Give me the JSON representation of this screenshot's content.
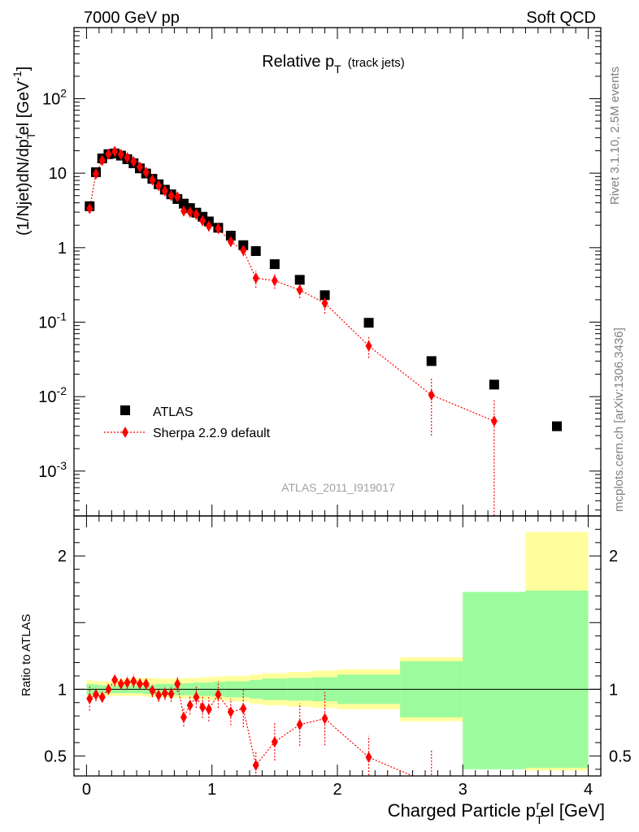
{
  "header": {
    "left": "7000 GeV pp",
    "right": "Soft QCD",
    "side_top": "Rivet 3.1.10,  2.5M events",
    "side_bottom": "mcplots.cern.ch [arXiv:1306.3436]"
  },
  "chart_data": [
    {
      "type": "scatter",
      "panel": "main",
      "title": "Relative p",
      "title_sub": "T",
      "title_note": "(track jets)",
      "ylabel": "(1/Njet)dN/dp",
      "ylabel_sub": "T",
      "ylabel_sup": "r",
      "ylabel_tail": "el [GeV",
      "ylabel_sup2": "-1",
      "ylabel_end": "]",
      "yscale": "log",
      "xlim": [
        -0.1,
        4.1
      ],
      "ylim": [
        0.00025,
        900
      ],
      "y_ticks": [
        {
          "value": 0.001,
          "base": "10",
          "exp": "-3"
        },
        {
          "value": 0.01,
          "base": "10",
          "exp": "-2"
        },
        {
          "value": 0.1,
          "base": "10",
          "exp": "-1"
        },
        {
          "value": 1,
          "base": "1",
          "exp": ""
        },
        {
          "value": 10,
          "base": "10",
          "exp": ""
        },
        {
          "value": 100,
          "base": "10",
          "exp": "2"
        }
      ],
      "watermark": "ATLAS_2011_I919017",
      "legend": {
        "position": "bottom-left",
        "entries": [
          "ATLAS",
          "Sherpa 2.2.9 default"
        ]
      },
      "series": [
        {
          "name": "ATLAS",
          "marker": "square",
          "color": "#000000",
          "x": [
            0.025,
            0.075,
            0.125,
            0.175,
            0.225,
            0.275,
            0.325,
            0.375,
            0.425,
            0.475,
            0.525,
            0.575,
            0.625,
            0.675,
            0.725,
            0.775,
            0.825,
            0.875,
            0.925,
            0.975,
            1.05,
            1.15,
            1.25,
            1.35,
            1.5,
            1.7,
            1.9,
            2.25,
            2.75,
            3.25,
            3.75
          ],
          "y": [
            3.6,
            10.3,
            15.8,
            18.0,
            18.4,
            17.2,
            15.4,
            13.6,
            11.6,
            9.9,
            8.4,
            7.1,
            6.0,
            5.2,
            4.5,
            3.9,
            3.4,
            2.95,
            2.6,
            2.25,
            1.85,
            1.45,
            1.08,
            0.9,
            0.6,
            0.37,
            0.23,
            0.098,
            0.03,
            0.0145,
            0.004
          ]
        },
        {
          "name": "Sherpa 2.2.9 default",
          "marker": "diamond",
          "line": "dotted",
          "color": "#ff0000",
          "x": [
            0.025,
            0.075,
            0.125,
            0.175,
            0.225,
            0.275,
            0.325,
            0.375,
            0.425,
            0.475,
            0.525,
            0.575,
            0.625,
            0.675,
            0.725,
            0.775,
            0.825,
            0.875,
            0.925,
            0.975,
            1.05,
            1.15,
            1.25,
            1.35,
            1.5,
            1.7,
            1.9,
            2.25,
            2.75,
            3.25
          ],
          "y": [
            3.35,
            9.8,
            14.8,
            18.0,
            19.6,
            17.9,
            16.1,
            14.3,
            12.1,
            10.3,
            8.1,
            6.8,
            5.8,
            5.0,
            4.8,
            3.1,
            3.0,
            2.8,
            2.3,
            1.95,
            1.8,
            1.2,
            0.92,
            0.39,
            0.36,
            0.27,
            0.18,
            0.048,
            0.0105,
            0.0047
          ],
          "yerr_lo": [
            0.2,
            0.4,
            0.5,
            0.6,
            0.6,
            0.6,
            0.5,
            0.5,
            0.4,
            0.4,
            0.35,
            0.3,
            0.3,
            0.3,
            0.3,
            0.3,
            0.3,
            0.3,
            0.3,
            0.3,
            0.2,
            0.15,
            0.15,
            0.1,
            0.08,
            0.06,
            0.05,
            0.015,
            0.0075,
            0.00475
          ],
          "yerr_hi": [
            0.2,
            0.4,
            0.5,
            0.6,
            0.6,
            0.6,
            0.5,
            0.5,
            0.4,
            0.4,
            0.35,
            0.3,
            0.3,
            0.3,
            0.3,
            0.3,
            0.3,
            0.3,
            0.3,
            0.3,
            0.2,
            0.15,
            0.15,
            0.1,
            0.08,
            0.06,
            0.05,
            0.015,
            0.0075,
            0.0045
          ]
        }
      ]
    },
    {
      "type": "scatter",
      "panel": "ratio",
      "ylabel": "Ratio to ATLAS",
      "xlabel": "Charged Particle p",
      "xlabel_sub": "T",
      "xlabel_sup": "r",
      "xlabel_tail": "el [GeV]",
      "xlim": [
        -0.1,
        4.1
      ],
      "ylim": [
        0.35,
        2.3
      ],
      "x_ticks": [
        0,
        1,
        2,
        3,
        4
      ],
      "y_ticks": [
        0.5,
        1,
        2
      ],
      "bands": {
        "edges": [
          0,
          0.05,
          0.1,
          0.15,
          0.2,
          0.25,
          0.3,
          0.35,
          0.4,
          0.45,
          0.5,
          0.55,
          0.6,
          0.65,
          0.7,
          0.75,
          0.8,
          0.85,
          0.9,
          0.95,
          1.0,
          1.1,
          1.2,
          1.3,
          1.4,
          1.6,
          1.8,
          2.0,
          2.5,
          3.0,
          3.5,
          4.0
        ],
        "stat_lo": [
          0.96,
          0.965,
          0.97,
          0.97,
          0.97,
          0.97,
          0.97,
          0.97,
          0.97,
          0.965,
          0.965,
          0.96,
          0.96,
          0.96,
          0.955,
          0.955,
          0.955,
          0.95,
          0.95,
          0.95,
          0.945,
          0.94,
          0.94,
          0.93,
          0.92,
          0.915,
          0.91,
          0.89,
          0.79,
          0.4,
          0.41
        ],
        "stat_hi": [
          1.04,
          1.035,
          1.03,
          1.03,
          1.03,
          1.03,
          1.03,
          1.03,
          1.03,
          1.035,
          1.035,
          1.04,
          1.04,
          1.04,
          1.045,
          1.045,
          1.045,
          1.05,
          1.05,
          1.05,
          1.055,
          1.06,
          1.06,
          1.07,
          1.08,
          1.085,
          1.09,
          1.11,
          1.21,
          1.73,
          1.74
        ],
        "total_lo": [
          0.94,
          0.945,
          0.95,
          0.95,
          0.95,
          0.95,
          0.95,
          0.95,
          0.95,
          0.945,
          0.94,
          0.94,
          0.94,
          0.935,
          0.935,
          0.93,
          0.93,
          0.925,
          0.925,
          0.92,
          0.92,
          0.91,
          0.905,
          0.89,
          0.88,
          0.87,
          0.86,
          0.85,
          0.76,
          0.46,
          0.39
        ],
        "total_hi": [
          1.07,
          1.06,
          1.06,
          1.06,
          1.07,
          1.075,
          1.08,
          1.085,
          1.085,
          1.085,
          1.085,
          1.08,
          1.08,
          1.08,
          1.08,
          1.08,
          1.085,
          1.085,
          1.09,
          1.09,
          1.095,
          1.1,
          1.1,
          1.11,
          1.12,
          1.13,
          1.14,
          1.15,
          1.24,
          1.66,
          2.18
        ],
        "stat_color": "#9cfb9c",
        "total_color": "#fffe9c"
      },
      "series": [
        {
          "name": "Sherpa 2.2.9 default",
          "marker": "diamond",
          "line": "dotted",
          "color": "#ff0000",
          "x": [
            0.025,
            0.075,
            0.125,
            0.175,
            0.225,
            0.275,
            0.325,
            0.375,
            0.425,
            0.475,
            0.525,
            0.575,
            0.625,
            0.675,
            0.725,
            0.775,
            0.825,
            0.875,
            0.925,
            0.975,
            1.05,
            1.15,
            1.25,
            1.35,
            1.5,
            1.7,
            1.9,
            2.25,
            2.75
          ],
          "y": [
            0.93,
            0.96,
            0.94,
            1.0,
            1.07,
            1.04,
            1.05,
            1.06,
            1.04,
            1.04,
            0.99,
            0.955,
            0.97,
            0.965,
            1.04,
            0.79,
            0.88,
            0.94,
            0.865,
            0.85,
            0.96,
            0.83,
            0.855,
            0.43,
            0.605,
            0.735,
            0.78,
            0.49,
            0.29
          ],
          "yerr": [
            0.09,
            0.05,
            0.04,
            0.04,
            0.05,
            0.04,
            0.05,
            0.05,
            0.04,
            0.04,
            0.05,
            0.05,
            0.05,
            0.06,
            0.06,
            0.07,
            0.07,
            0.08,
            0.08,
            0.09,
            0.1,
            0.1,
            0.14,
            0.11,
            0.14,
            0.16,
            0.2,
            0.16,
            0.25
          ]
        }
      ]
    }
  ]
}
